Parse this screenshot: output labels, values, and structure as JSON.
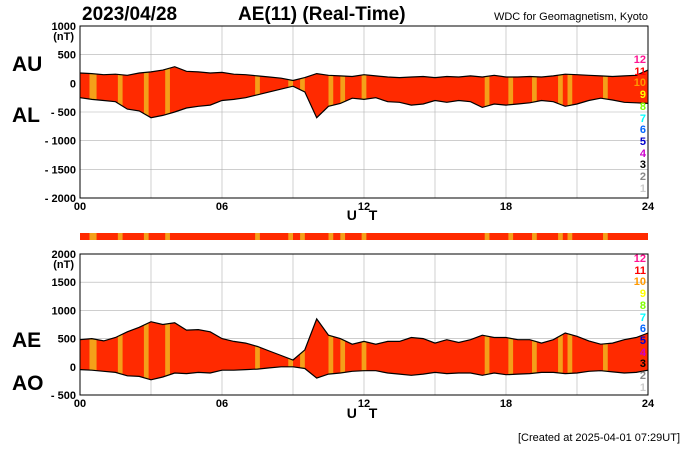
{
  "header": {
    "date": "2023/04/28",
    "title": "AE(11) (Real-Time)",
    "source": "WDC for Geomagnetism, Kyoto"
  },
  "footer": {
    "created": "[Created at 2025-04-01 07:29UT]"
  },
  "colors": {
    "fill": "#ff2a00",
    "highlight": "#f4a019",
    "line": "#000000",
    "grid": "#b0b0b0"
  },
  "legend": {
    "items": [
      {
        "label": "12",
        "color": "#ff1493"
      },
      {
        "label": "11",
        "color": "#ff0000"
      },
      {
        "label": "10",
        "color": "#ff9900"
      },
      {
        "label": "9",
        "color": "#ffff00"
      },
      {
        "label": "8",
        "color": "#7fff00"
      },
      {
        "label": "7",
        "color": "#00ffff"
      },
      {
        "label": "6",
        "color": "#0066ff"
      },
      {
        "label": "5",
        "color": "#0000cc"
      },
      {
        "label": "4",
        "color": "#cc00cc"
      },
      {
        "label": "3",
        "color": "#000000"
      },
      {
        "label": "2",
        "color": "#888888"
      },
      {
        "label": "1",
        "color": "#cccccc"
      }
    ]
  },
  "chart_data": [
    {
      "type": "area",
      "id": "au-al",
      "series": [
        {
          "name": "AU"
        },
        {
          "name": "AL"
        }
      ],
      "ylabel": "(nT)",
      "xlabel": "U T",
      "xlim": [
        0,
        24
      ],
      "ylim": [
        -2000,
        1000
      ],
      "yticks": [
        {
          "v": 1000,
          "label": "1000"
        },
        {
          "v": 500,
          "label": "500"
        },
        {
          "v": 0,
          "label": "0"
        },
        {
          "v": -500,
          "label": "- 500"
        },
        {
          "v": -1000,
          "label": "- 1000"
        },
        {
          "v": -1500,
          "label": "- 1500"
        },
        {
          "v": -2000,
          "label": "- 2000"
        }
      ],
      "xticks": [
        {
          "v": 0,
          "label": "00"
        },
        {
          "v": 6,
          "label": "06"
        },
        {
          "v": 12,
          "label": "12"
        },
        {
          "v": 18,
          "label": "18"
        },
        {
          "v": 24,
          "label": "24"
        }
      ],
      "grid": true,
      "upper_label": "AU",
      "lower_label": "AL",
      "x": [
        0,
        0.5,
        1,
        1.5,
        2,
        2.5,
        3,
        3.5,
        4,
        4.5,
        5,
        5.5,
        6,
        6.5,
        7,
        7.5,
        8,
        8.5,
        9,
        9.5,
        10,
        10.5,
        11,
        11.5,
        12,
        12.5,
        13,
        13.5,
        14,
        14.5,
        15,
        15.5,
        16,
        16.5,
        17,
        17.5,
        18,
        18.5,
        19,
        19.5,
        20,
        20.5,
        21,
        21.5,
        22,
        22.5,
        23,
        23.5,
        24
      ],
      "au": [
        180,
        170,
        150,
        160,
        140,
        180,
        200,
        230,
        290,
        210,
        200,
        180,
        190,
        160,
        150,
        130,
        110,
        90,
        50,
        100,
        170,
        140,
        130,
        120,
        150,
        130,
        110,
        100,
        110,
        120,
        100,
        120,
        110,
        130,
        110,
        140,
        110,
        110,
        120,
        110,
        130,
        160,
        150,
        140,
        130,
        120,
        130,
        140,
        230
      ],
      "al": [
        -250,
        -280,
        -300,
        -320,
        -450,
        -480,
        -600,
        -560,
        -500,
        -430,
        -400,
        -380,
        -300,
        -280,
        -250,
        -200,
        -150,
        -100,
        -50,
        -150,
        -600,
        -400,
        -350,
        -260,
        -280,
        -250,
        -320,
        -330,
        -380,
        -360,
        -300,
        -330,
        -300,
        -320,
        -420,
        -360,
        -380,
        -360,
        -340,
        -300,
        -320,
        -400,
        -360,
        -300,
        -260,
        -290,
        -330,
        -340,
        -350
      ]
    },
    {
      "type": "area",
      "id": "ae-ao",
      "series": [
        {
          "name": "AE"
        },
        {
          "name": "AO"
        }
      ],
      "ylabel": "(nT)",
      "xlabel": "U T",
      "xlim": [
        0,
        24
      ],
      "ylim": [
        -500,
        2000
      ],
      "yticks": [
        {
          "v": 2000,
          "label": "2000"
        },
        {
          "v": 1500,
          "label": "1500"
        },
        {
          "v": 1000,
          "label": "1000"
        },
        {
          "v": 500,
          "label": "500"
        },
        {
          "v": 0,
          "label": "0"
        },
        {
          "v": -500,
          "label": "- 500"
        }
      ],
      "xticks": [
        {
          "v": 0,
          "label": "00"
        },
        {
          "v": 6,
          "label": "06"
        },
        {
          "v": 12,
          "label": "12"
        },
        {
          "v": 18,
          "label": "18"
        },
        {
          "v": 24,
          "label": "24"
        }
      ],
      "grid": true,
      "upper_label": "AE",
      "lower_label": "AO",
      "x": [
        0,
        0.5,
        1,
        1.5,
        2,
        2.5,
        3,
        3.5,
        4,
        4.5,
        5,
        5.5,
        6,
        6.5,
        7,
        7.5,
        8,
        8.5,
        9,
        9.5,
        10,
        10.5,
        11,
        11.5,
        12,
        12.5,
        13,
        13.5,
        14,
        14.5,
        15,
        15.5,
        16,
        16.5,
        17,
        17.5,
        18,
        18.5,
        19,
        19.5,
        20,
        20.5,
        21,
        21.5,
        22,
        22.5,
        23,
        23.5,
        24
      ],
      "ae": [
        480,
        500,
        460,
        520,
        620,
        700,
        800,
        750,
        780,
        650,
        660,
        620,
        500,
        450,
        420,
        360,
        280,
        200,
        120,
        300,
        850,
        560,
        500,
        400,
        450,
        400,
        450,
        450,
        520,
        500,
        420,
        480,
        430,
        480,
        560,
        520,
        520,
        480,
        480,
        420,
        480,
        600,
        540,
        460,
        400,
        420,
        480,
        520,
        600
      ],
      "ao": [
        -50,
        -60,
        -80,
        -100,
        -160,
        -170,
        -230,
        -180,
        -110,
        -120,
        -100,
        -110,
        -60,
        -60,
        -50,
        -40,
        -20,
        0,
        0,
        -30,
        -200,
        -130,
        -110,
        -80,
        -70,
        -70,
        -110,
        -130,
        -150,
        -130,
        -100,
        -120,
        -110,
        -110,
        -150,
        -110,
        -140,
        -130,
        -120,
        -100,
        -100,
        -120,
        -110,
        -80,
        -70,
        -90,
        -110,
        -100,
        -60
      ]
    }
  ],
  "highlight_bands": [
    {
      "start": 0.4,
      "end": 0.7
    },
    {
      "start": 1.6,
      "end": 1.8
    },
    {
      "start": 2.7,
      "end": 2.9
    },
    {
      "start": 3.6,
      "end": 3.8
    },
    {
      "start": 7.4,
      "end": 7.6
    },
    {
      "start": 8.8,
      "end": 9.0
    },
    {
      "start": 9.3,
      "end": 9.5
    },
    {
      "start": 10.5,
      "end": 10.7
    },
    {
      "start": 11.0,
      "end": 11.2
    },
    {
      "start": 11.9,
      "end": 12.1
    },
    {
      "start": 17.1,
      "end": 17.3
    },
    {
      "start": 18.1,
      "end": 18.3
    },
    {
      "start": 19.1,
      "end": 19.3
    },
    {
      "start": 20.2,
      "end": 20.4
    },
    {
      "start": 20.6,
      "end": 20.8
    },
    {
      "start": 22.1,
      "end": 22.3
    }
  ]
}
